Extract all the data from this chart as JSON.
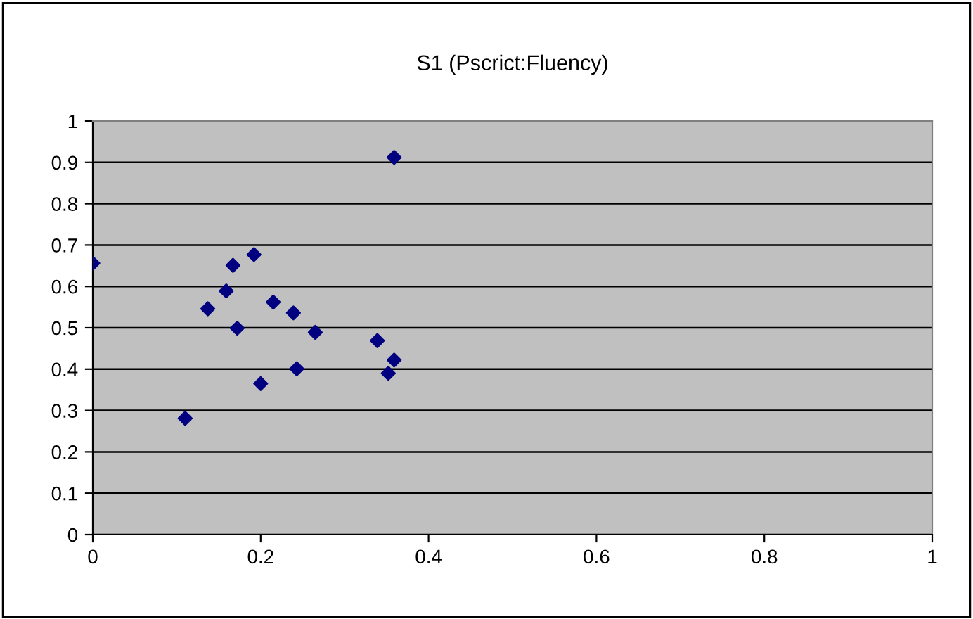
{
  "chart_data": {
    "type": "scatter",
    "title": "S1 (Pscrict:Fluency)",
    "series": [
      {
        "color": "#000080",
        "x": [
          0,
          0.11,
          0.137,
          0.159,
          0.167,
          0.172,
          0.192,
          0.2,
          0.215,
          0.239,
          0.243,
          0.265,
          0.339,
          0.352,
          0.359,
          0.359
        ],
        "values": [
          0.656,
          0.281,
          0.546,
          0.589,
          0.651,
          0.499,
          0.677,
          0.365,
          0.562,
          0.536,
          0.401,
          0.489,
          0.469,
          0.39,
          0.912,
          0.422
        ]
      }
    ],
    "xlim": [
      0,
      1
    ],
    "ylim": [
      0,
      1
    ],
    "xticks": [
      0,
      0.2,
      0.4,
      0.6,
      0.8,
      1
    ],
    "yticks": [
      0,
      0.1,
      0.2,
      0.3,
      0.4,
      0.5,
      0.6,
      0.7,
      0.8,
      0.9,
      1
    ],
    "grid": "y",
    "marker": "diamond",
    "legend": false
  }
}
